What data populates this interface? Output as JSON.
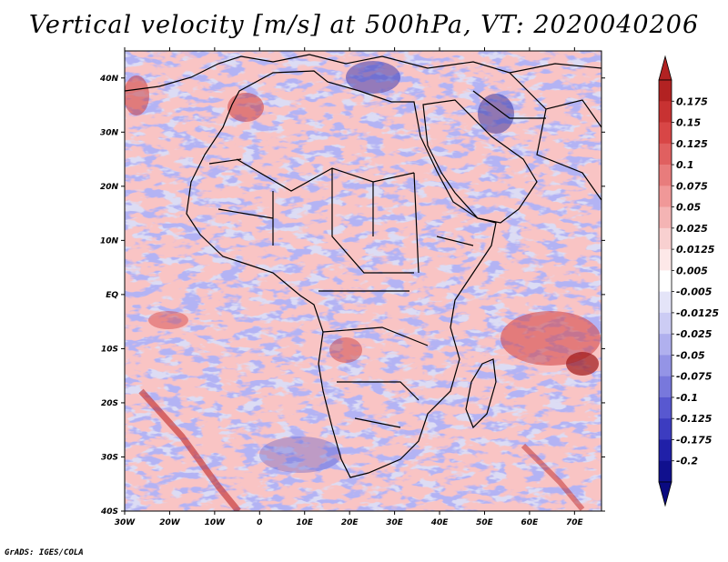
{
  "map": {
    "title": "Vertical velocity [m/s] at 500hPa, VT: 2020040206",
    "footer": "GrADS: IGES/COLA",
    "variable": "Vertical velocity",
    "units": "m/s",
    "level": "500hPa",
    "valid_time": "2020040206",
    "region": "Africa",
    "lon_range": [
      -30,
      76
    ],
    "lat_range": [
      -40,
      45
    ],
    "lat_ticks": [
      "40N",
      "30N",
      "20N",
      "10N",
      "EQ",
      "10S",
      "20S",
      "30S",
      "40S"
    ],
    "lat_tick_values": [
      40,
      30,
      20,
      10,
      0,
      -10,
      -20,
      -30,
      -40
    ],
    "lon_ticks": [
      "30W",
      "20W",
      "10W",
      "0",
      "10E",
      "20E",
      "30E",
      "40E",
      "50E",
      "60E",
      "70E"
    ],
    "lon_tick_values": [
      -30,
      -20,
      -10,
      0,
      10,
      20,
      30,
      40,
      50,
      60,
      70
    ]
  },
  "legend": {
    "labels": [
      "0.175",
      "0.15",
      "0.125",
      "0.1",
      "0.075",
      "0.05",
      "0.025",
      "0.0125",
      "0.005",
      "-0.005",
      "-0.0125",
      "-0.025",
      "-0.05",
      "-0.075",
      "-0.1",
      "-0.125",
      "-0.175",
      "-0.2"
    ],
    "colors": [
      "#b22222",
      "#c83232",
      "#d84646",
      "#e06060",
      "#e87c7c",
      "#f09898",
      "#f4b4b4",
      "#f8d0d0",
      "#fde8e8",
      "#ffffff",
      "#e4e4f8",
      "#ccccf4",
      "#b0b0ee",
      "#9494e6",
      "#7878dc",
      "#5858d0",
      "#3c3cc0",
      "#2020a8",
      "#10108e"
    ],
    "top_color": "#b22222",
    "bottom_color": "#0a0a80"
  },
  "colors": {
    "positive_accent": "#e06060",
    "negative_accent": "#6666dd",
    "background_field": "#dcdcf6",
    "border_line": "#000000"
  }
}
